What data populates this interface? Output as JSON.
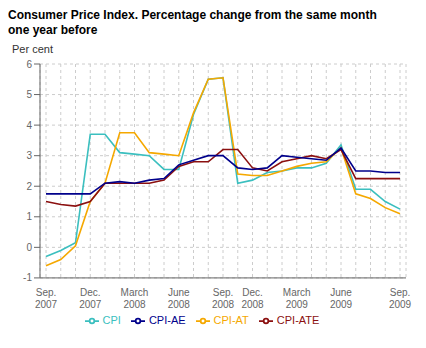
{
  "chart_data": {
    "type": "line",
    "title": "Consumer Price Index. Percentage change from the same month\none year before",
    "ylabel": "Per cent",
    "categories": [
      "Sep.\n2007",
      null,
      null,
      "Dec.\n2007",
      null,
      null,
      "March\n2008",
      null,
      null,
      "June\n2008",
      null,
      null,
      "Sep.\n2008",
      null,
      "Dec.\n2008",
      null,
      null,
      "March\n2009",
      null,
      null,
      "June\n2009",
      null,
      null,
      null,
      "Sep.\n2009"
    ],
    "series": [
      {
        "name": "CPI",
        "color": "#3bbfbf",
        "values": [
          -0.3,
          -0.1,
          0.15,
          3.7,
          3.7,
          3.1,
          3.05,
          3.0,
          2.55,
          2.55,
          4.35,
          5.5,
          5.55,
          2.1,
          2.2,
          2.45,
          2.5,
          2.6,
          2.6,
          2.75,
          3.35,
          1.9,
          1.9,
          1.5,
          1.25
        ]
      },
      {
        "name": "CPI-AT",
        "color": "#f5a800",
        "values": [
          -0.6,
          -0.4,
          0.05,
          1.5,
          2.1,
          3.75,
          3.75,
          3.1,
          3.05,
          3.0,
          4.4,
          5.5,
          5.55,
          2.4,
          2.35,
          2.35,
          2.5,
          2.65,
          2.75,
          2.8,
          3.25,
          1.75,
          1.6,
          1.3,
          1.1
        ]
      },
      {
        "name": "CPI-ATE",
        "color": "#8b1010",
        "values": [
          1.5,
          1.4,
          1.35,
          1.5,
          2.1,
          2.1,
          2.1,
          2.1,
          2.2,
          2.65,
          2.8,
          2.8,
          3.2,
          3.2,
          2.6,
          2.5,
          2.8,
          2.9,
          3.0,
          2.9,
          3.2,
          2.25,
          2.25,
          2.25,
          2.25
        ]
      },
      {
        "name": "CPI-AE",
        "color": "#00008b",
        "values": [
          1.75,
          1.75,
          1.75,
          1.75,
          2.1,
          2.15,
          2.1,
          2.2,
          2.25,
          2.7,
          2.85,
          3.0,
          3.0,
          2.6,
          2.55,
          2.6,
          3.0,
          2.95,
          2.9,
          2.85,
          3.25,
          2.5,
          2.5,
          2.45,
          2.45
        ]
      }
    ],
    "ylim": [
      -1,
      6
    ],
    "yticks": [
      -1,
      0,
      1,
      2,
      3,
      4,
      5,
      6
    ],
    "grid": true,
    "legend": "bottom"
  }
}
